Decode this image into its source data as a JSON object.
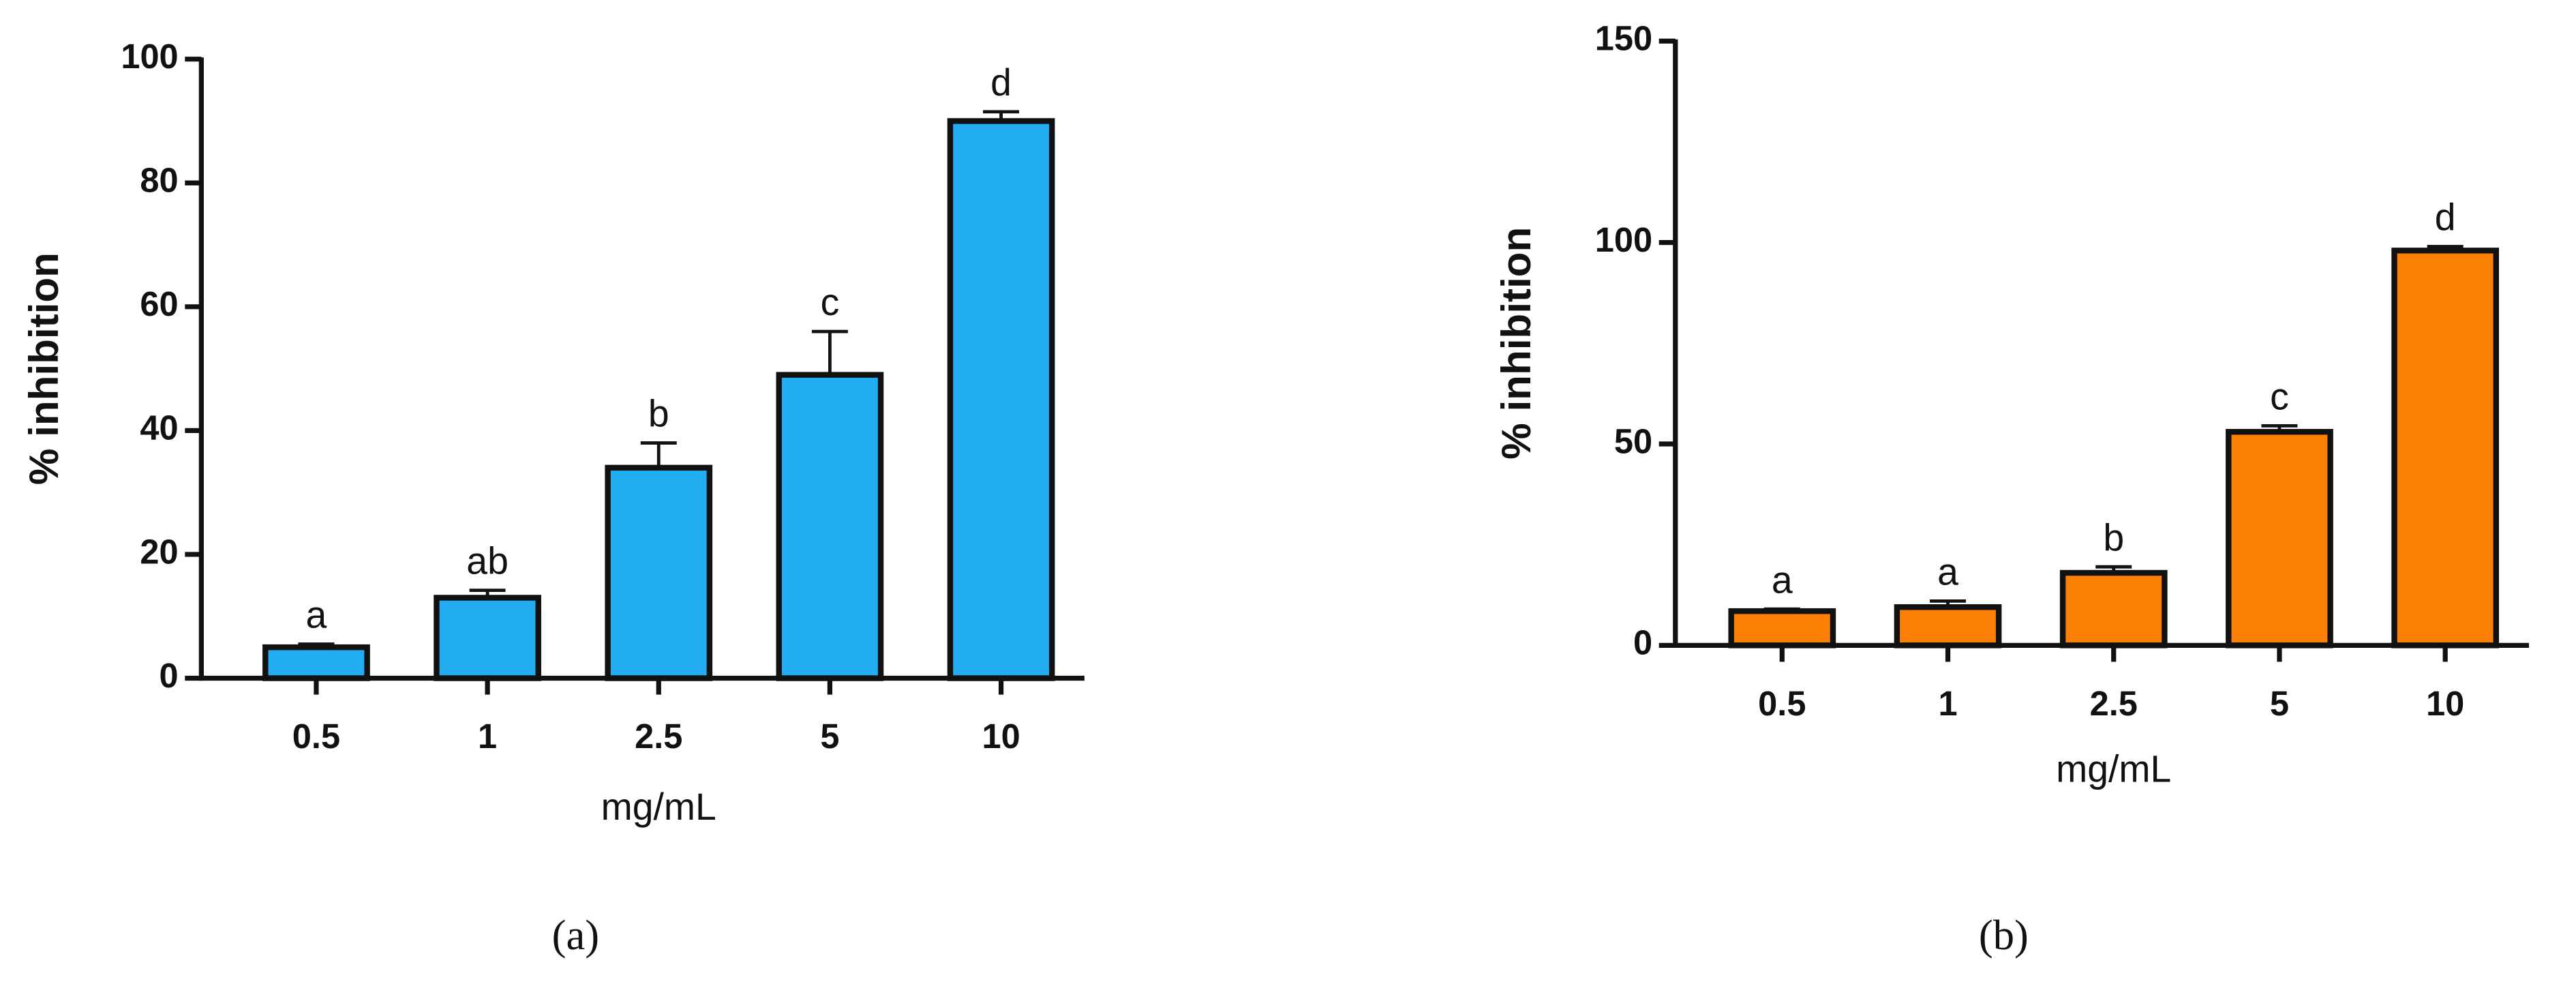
{
  "chart_data": [
    {
      "type": "bar",
      "panel_label": "(a)",
      "ylabel": "% inhibition",
      "xlabel": "mg/mL",
      "categories": [
        "0.5",
        "1",
        "2.5",
        "5",
        "10"
      ],
      "values": [
        5,
        13,
        34,
        49,
        90
      ],
      "errors": [
        0.5,
        1.2,
        4,
        7,
        1.5
      ],
      "annotations": [
        "a",
        "ab",
        "b",
        "c",
        "d"
      ],
      "color": "#22acf2",
      "ylim": [
        0,
        100
      ],
      "yticks": [
        0,
        20,
        40,
        60,
        80,
        100
      ]
    },
    {
      "type": "bar",
      "panel_label": "(b)",
      "ylabel": "% inhibition",
      "xlabel": "mg/mL",
      "categories": [
        "0.5",
        "1",
        "2.5",
        "5",
        "10"
      ],
      "values": [
        8.5,
        9.5,
        18,
        53,
        98
      ],
      "errors": [
        0.5,
        1.5,
        1.5,
        1.5,
        1
      ],
      "annotations": [
        "a",
        "a",
        "b",
        "c",
        "d"
      ],
      "color": "#fb8005",
      "ylim": [
        0,
        150
      ],
      "yticks": [
        0,
        50,
        100,
        150
      ]
    }
  ]
}
